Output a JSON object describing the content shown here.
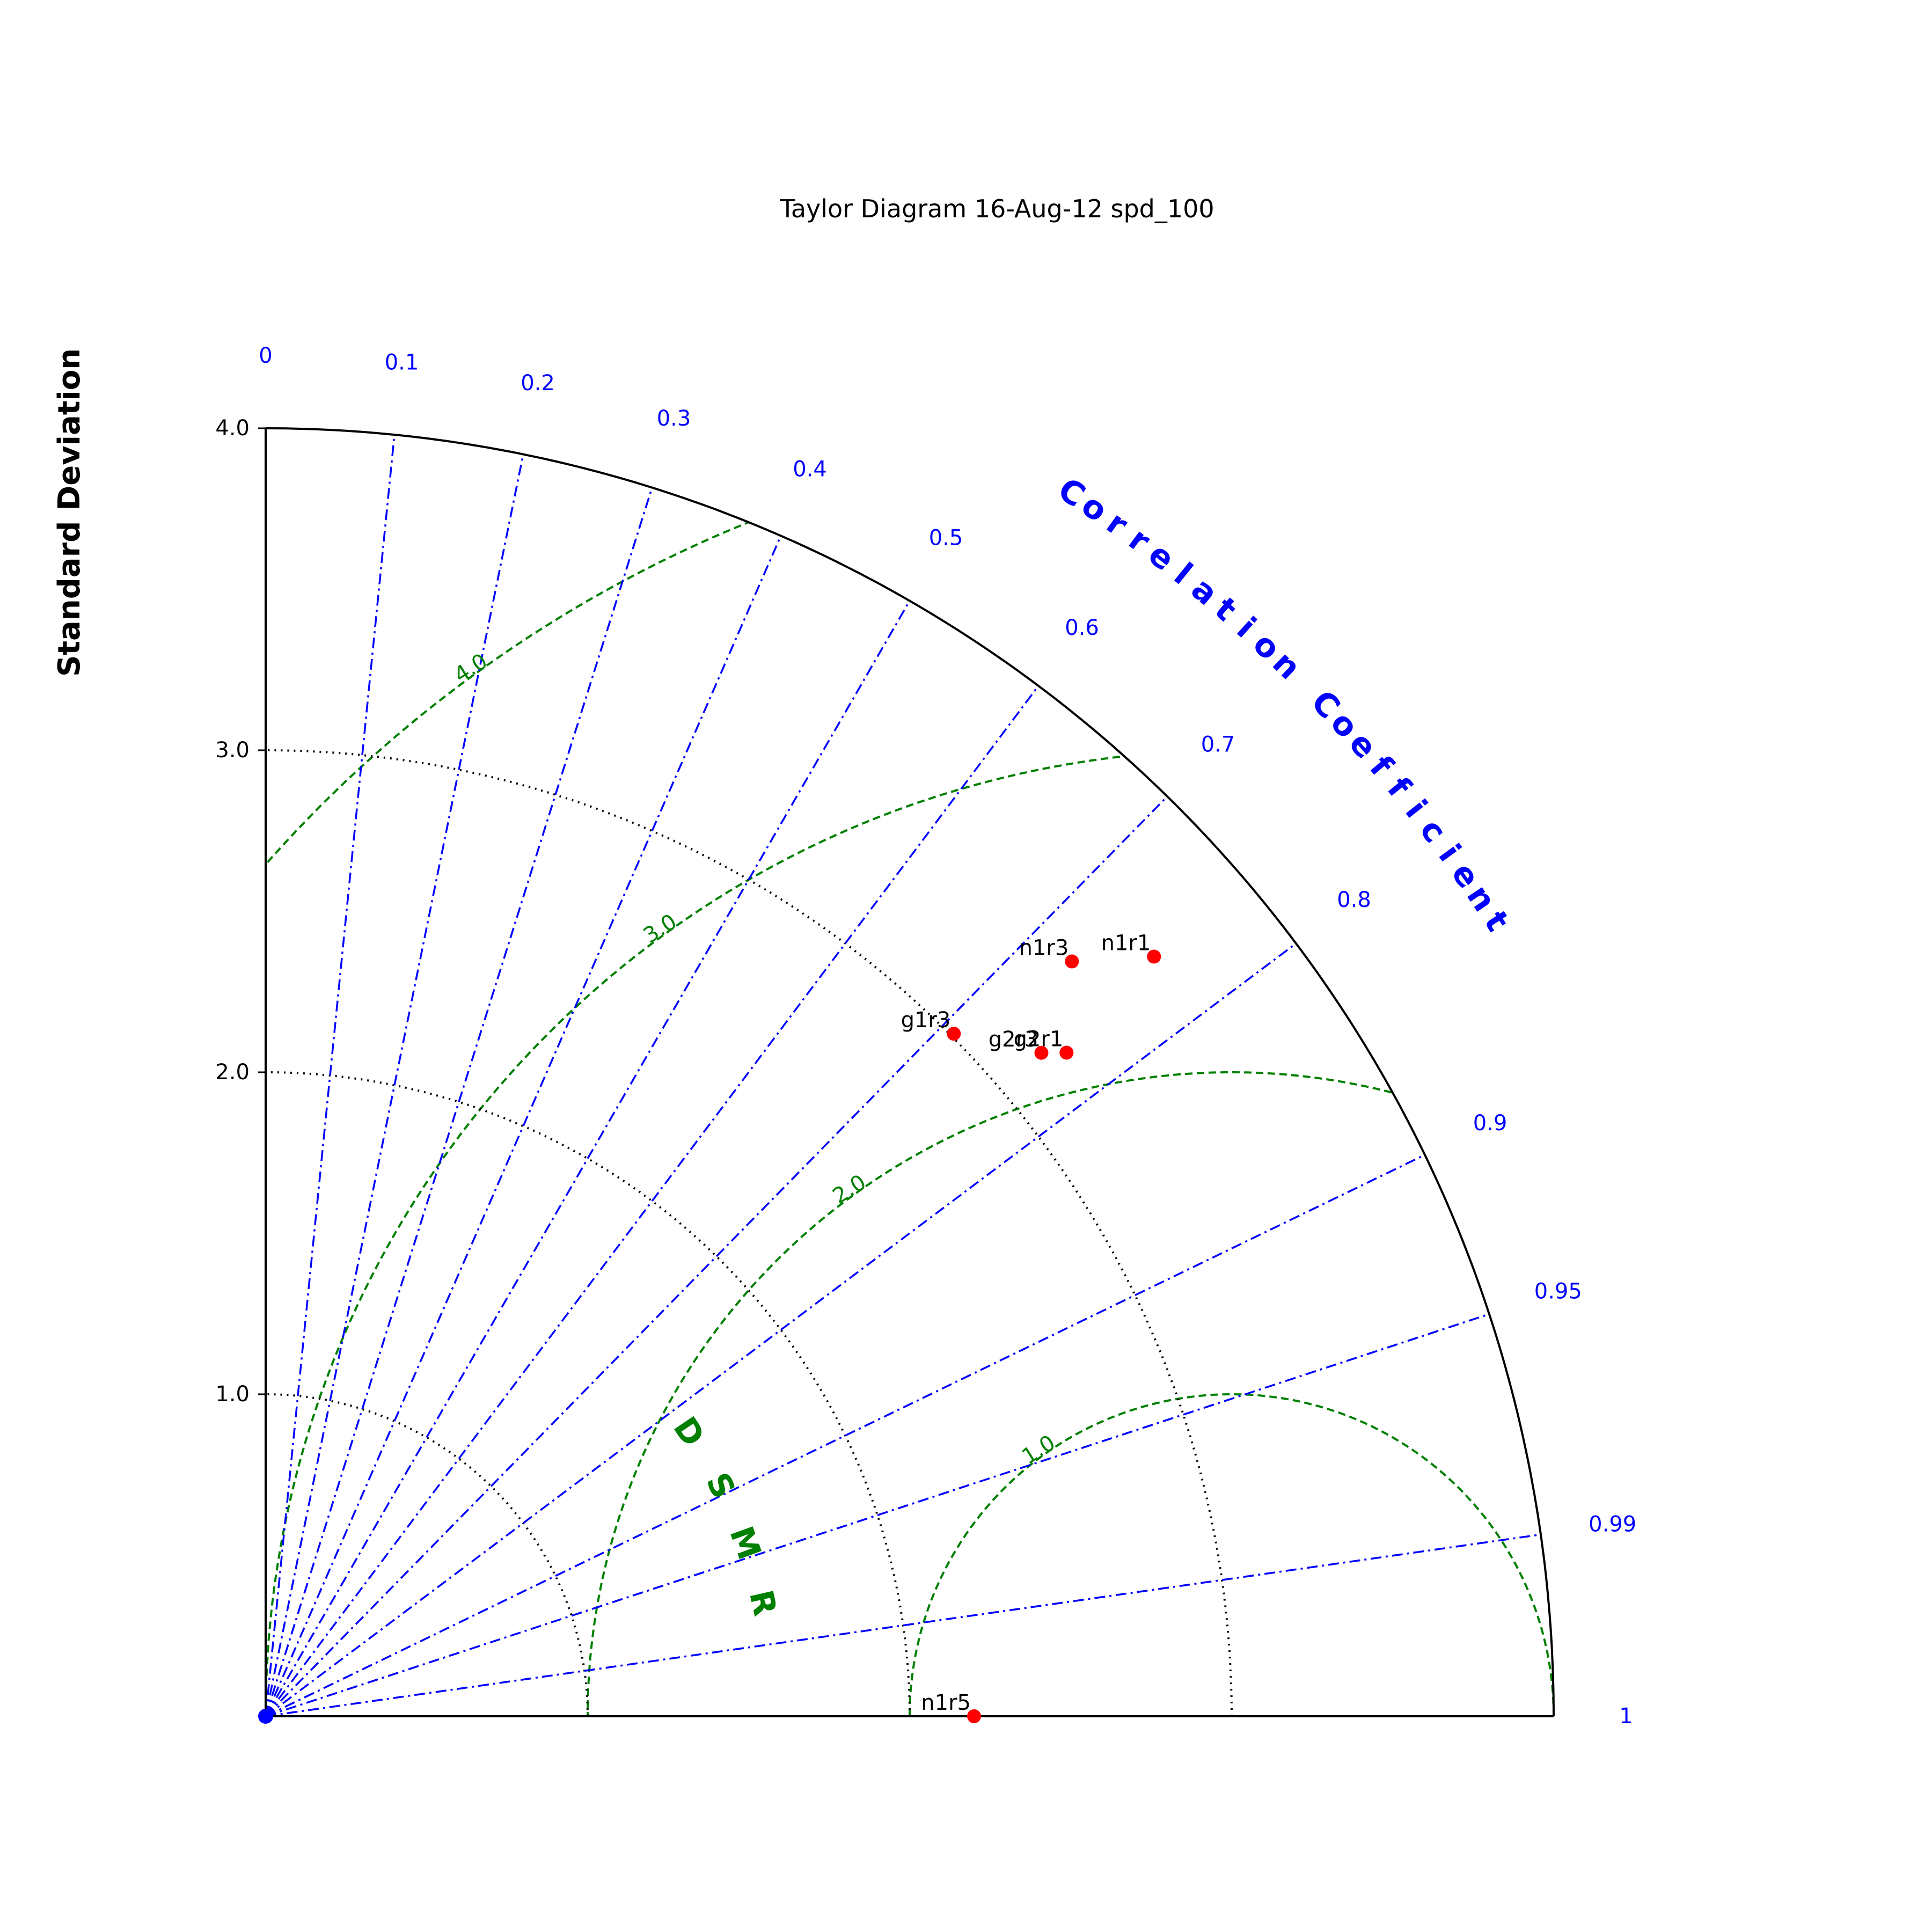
{
  "chart_data": {
    "type": "scatter",
    "diagram": "taylor",
    "title": "Taylor Diagram 16-Aug-12 spd_100",
    "ylabel": "Standard Deviation",
    "correlation_label": "Correlation Coefficient",
    "rms_label": "RMSD",
    "std_ticks": [
      "1.0",
      "2.0",
      "3.0",
      "4.0"
    ],
    "std_max": 4.0,
    "std_grid": [
      1.0,
      2.0,
      3.0
    ],
    "reference_std": 3.0,
    "correlation_ticks": [
      {
        "value": 0,
        "label": "0"
      },
      {
        "value": 0.1,
        "label": "0.1"
      },
      {
        "value": 0.2,
        "label": "0.2"
      },
      {
        "value": 0.3,
        "label": "0.3"
      },
      {
        "value": 0.4,
        "label": "0.4"
      },
      {
        "value": 0.5,
        "label": "0.5"
      },
      {
        "value": 0.6,
        "label": "0.6"
      },
      {
        "value": 0.7,
        "label": "0.7"
      },
      {
        "value": 0.8,
        "label": "0.8"
      },
      {
        "value": 0.9,
        "label": "0.9"
      },
      {
        "value": 0.95,
        "label": "0.95"
      },
      {
        "value": 0.99,
        "label": "0.99"
      },
      {
        "value": 1,
        "label": "1"
      }
    ],
    "rms_contours": [
      {
        "value": 1.0,
        "label": "1.0"
      },
      {
        "value": 2.0,
        "label": "2.0"
      },
      {
        "value": 3.0,
        "label": "3.0"
      },
      {
        "value": 4.0,
        "label": "4.0"
      }
    ],
    "points": [
      {
        "label": "n1r1",
        "std": 3.63,
        "corr": 0.76
      },
      {
        "label": "n1r3",
        "std": 3.43,
        "corr": 0.73
      },
      {
        "label": "g2r1",
        "std": 3.23,
        "corr": 0.77
      },
      {
        "label": "g2r3",
        "std": 3.17,
        "corr": 0.76
      },
      {
        "label": "g1r3",
        "std": 3.01,
        "corr": 0.71
      },
      {
        "label": "n1r5",
        "std": 2.2,
        "corr": 1.0
      }
    ],
    "colors": {
      "correlation": "#0000ff",
      "rms": "#008000",
      "points": "#ff0000",
      "std_grid": "#000000"
    },
    "grid": true
  }
}
